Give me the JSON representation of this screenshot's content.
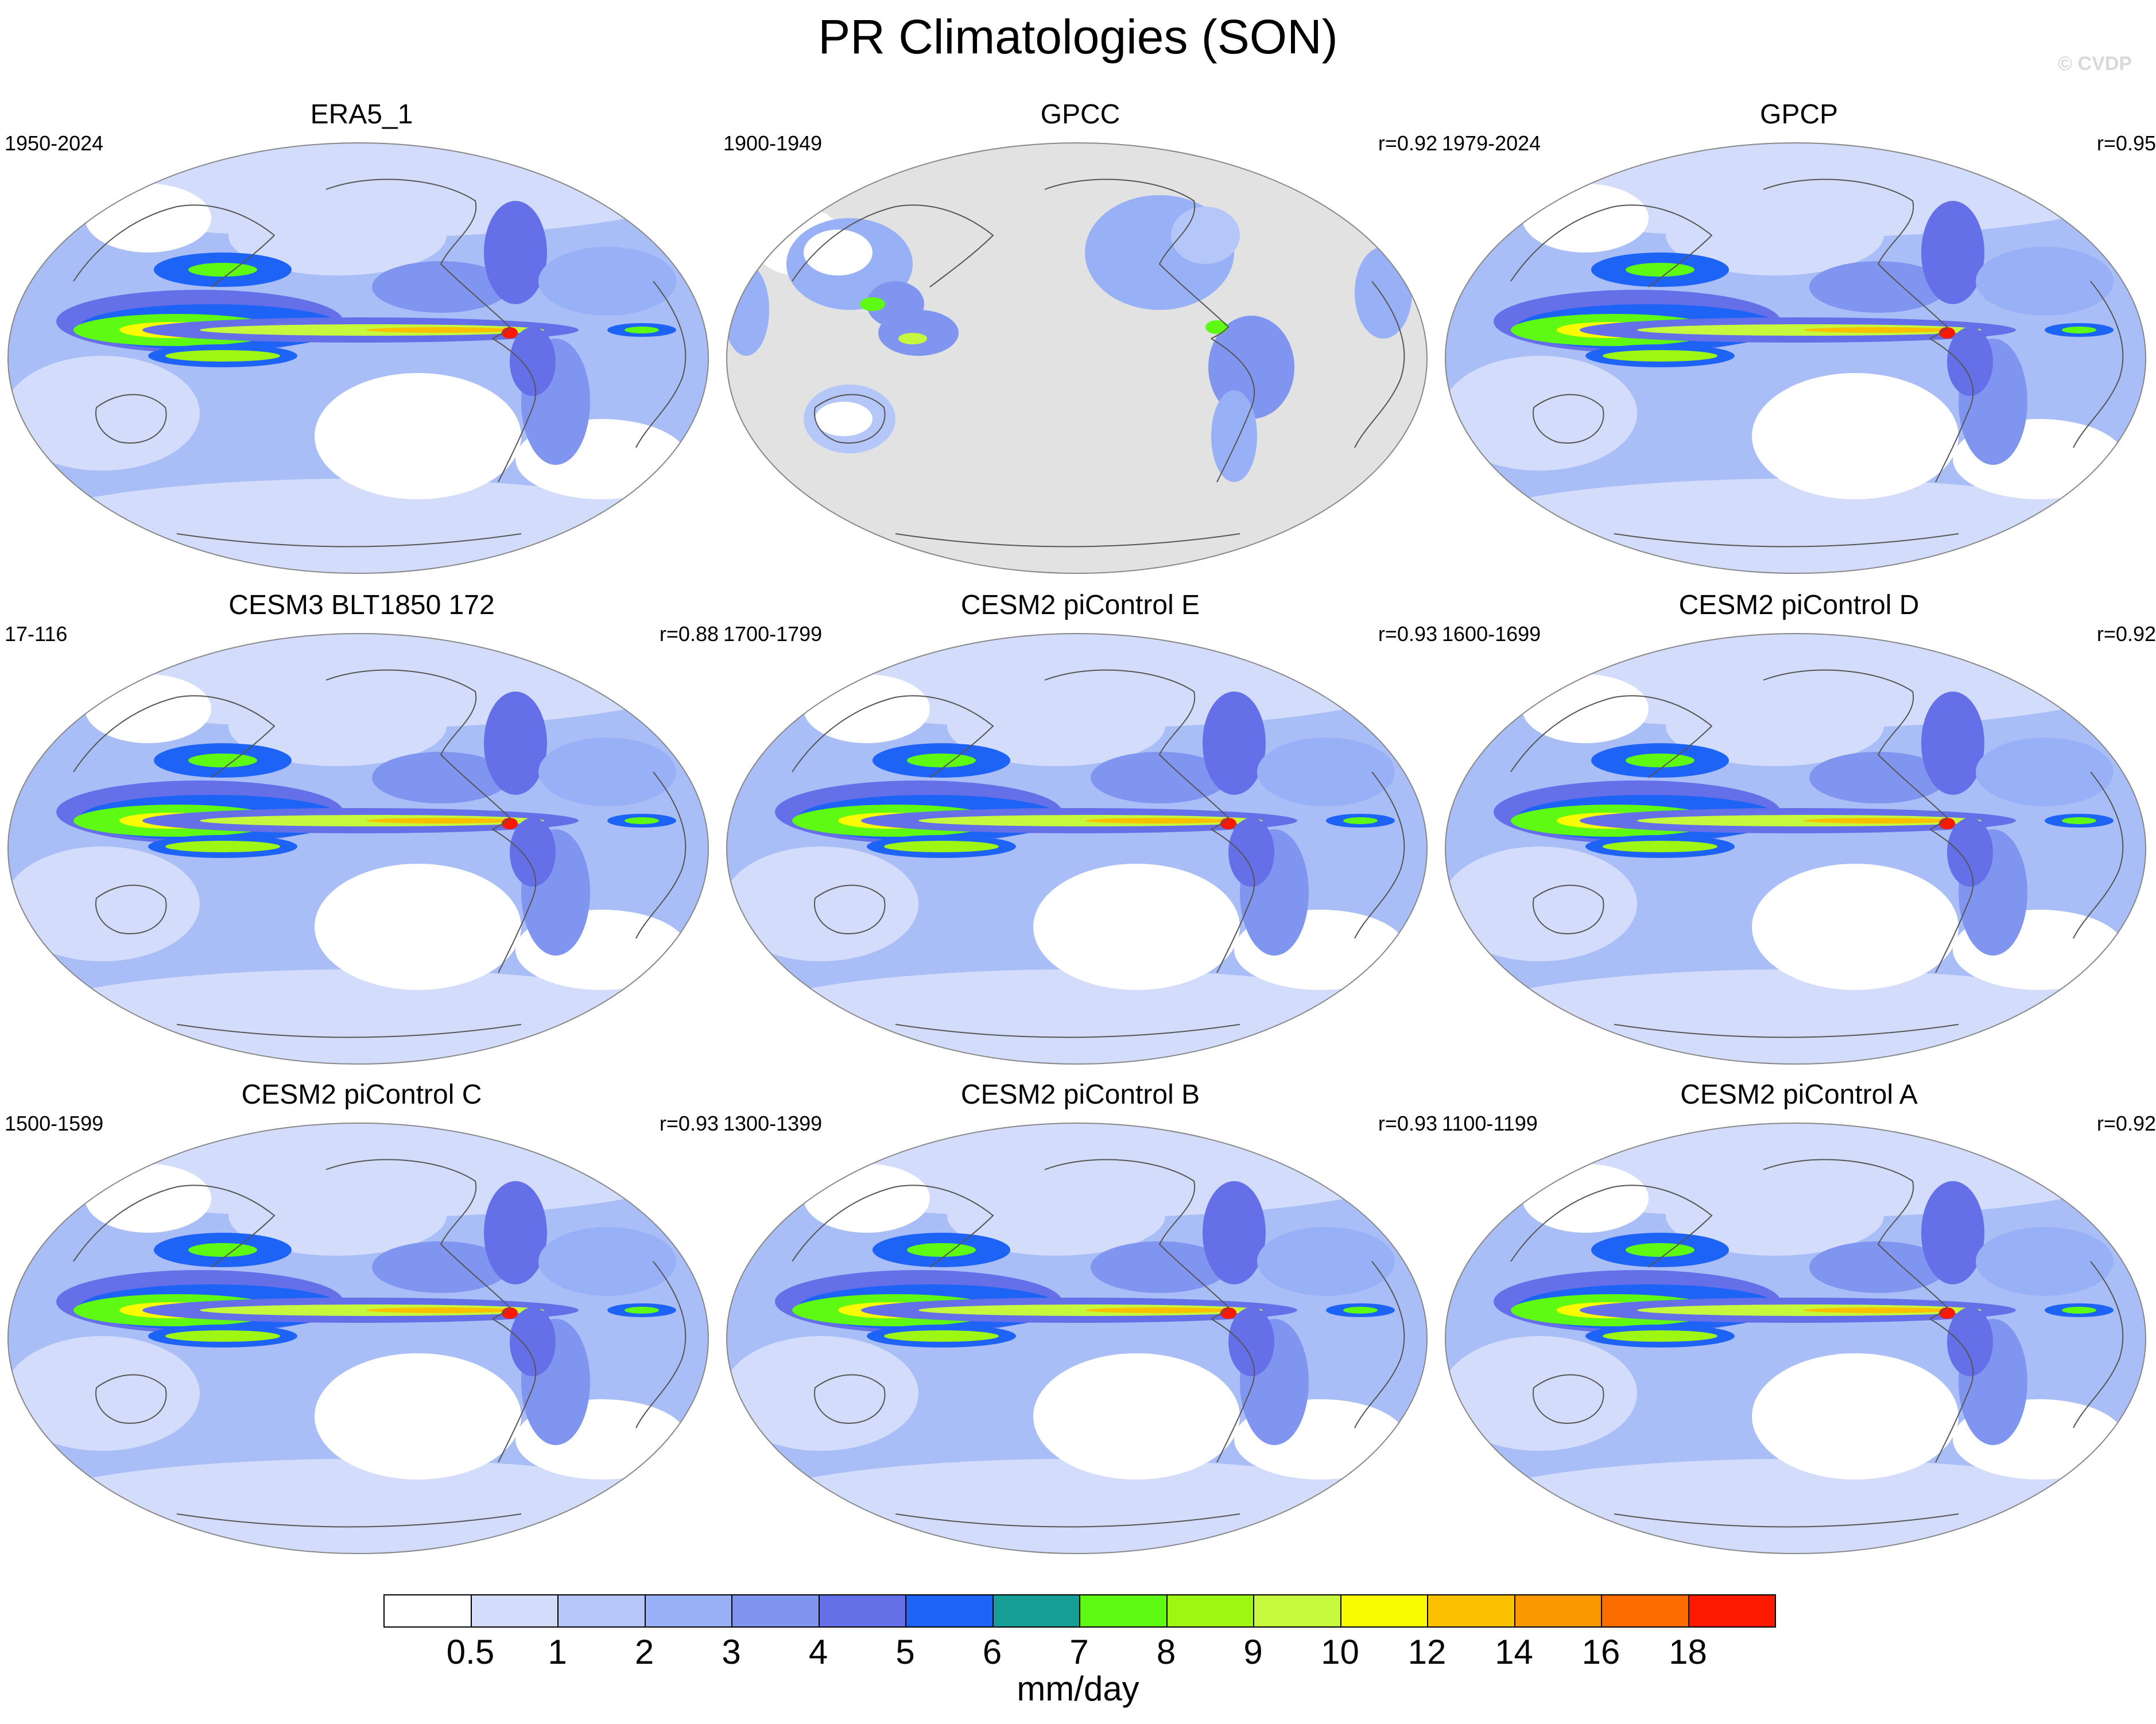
{
  "title": "PR Climatologies (SON)",
  "watermark": "© CVDP",
  "panels": [
    {
      "title": "ERA5_1",
      "period": "1950-2024",
      "corr": "",
      "mask_land_only": false
    },
    {
      "title": "GPCC",
      "period": "1900-1949",
      "corr": "r=0.92",
      "mask_land_only": true
    },
    {
      "title": "GPCP",
      "period": "1979-2024",
      "corr": "r=0.95",
      "mask_land_only": false
    },
    {
      "title": "CESM3 BLT1850 172",
      "period": "17-116",
      "corr": "r=0.88",
      "mask_land_only": false
    },
    {
      "title": "CESM2 piControl E",
      "period": "1700-1799",
      "corr": "r=0.93",
      "mask_land_only": false
    },
    {
      "title": "CESM2 piControl D",
      "period": "1600-1699",
      "corr": "r=0.92",
      "mask_land_only": false
    },
    {
      "title": "CESM2 piControl C",
      "period": "1500-1599",
      "corr": "r=0.93",
      "mask_land_only": false
    },
    {
      "title": "CESM2 piControl B",
      "period": "1300-1399",
      "corr": "r=0.93",
      "mask_land_only": false
    },
    {
      "title": "CESM2 piControl A",
      "period": "1100-1199",
      "corr": "r=0.92",
      "mask_land_only": false
    }
  ],
  "colorbar": {
    "units": "mm/day",
    "labels": [
      "0.5",
      "1",
      "2",
      "3",
      "4",
      "5",
      "6",
      "7",
      "8",
      "9",
      "10",
      "12",
      "14",
      "16",
      "18"
    ],
    "colors": [
      "#ffffff",
      "#d3dcfa",
      "#b5c6f8",
      "#98b0f6",
      "#7f95f0",
      "#6570e8",
      "#1d63f5",
      "#149e95",
      "#5efa14",
      "#9df712",
      "#c6f83e",
      "#fbfb00",
      "#fbc000",
      "#fb9800",
      "#fb6d00",
      "#fb1a00"
    ]
  }
}
